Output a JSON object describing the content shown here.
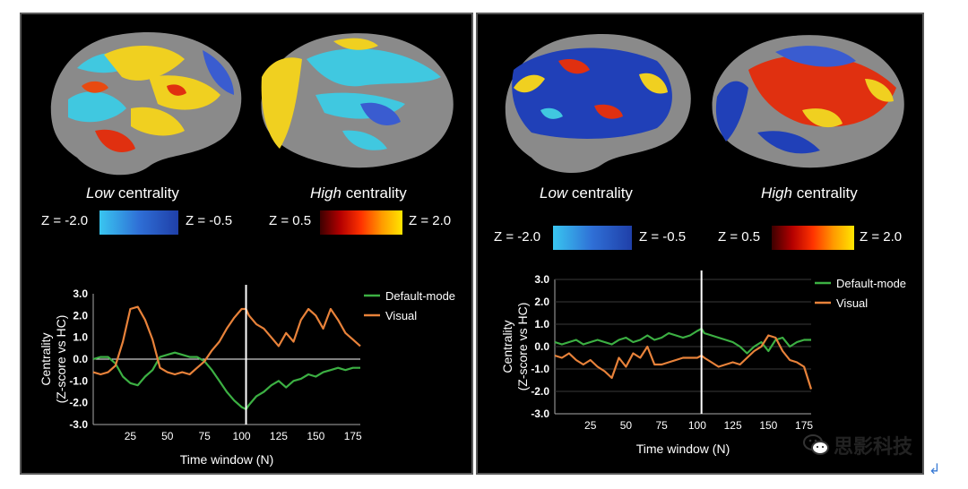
{
  "panels": [
    {
      "low_label_italic": "Low",
      "low_label_rest": " centrality",
      "high_label_italic": "High",
      "high_label_rest": " centrality",
      "z_low_min": "Z = -2.0",
      "z_low_max": "Z = -0.5",
      "z_high_min": "Z = 0.5",
      "z_high_max": "Z = 2.0"
    },
    {
      "low_label_italic": "Low",
      "low_label_rest": " centrality",
      "high_label_italic": "High",
      "high_label_rest": " centrality",
      "z_low_min": "Z = -2.0",
      "z_low_max": "Z = -0.5",
      "z_high_min": "Z = 0.5",
      "z_high_max": "Z = 2.0"
    }
  ],
  "colors": {
    "default_mode": "#3cb043",
    "visual": "#e8823a",
    "low_scale": [
      "#39c6f0",
      "#1f3fa8"
    ],
    "high_scale": [
      "#3d0000",
      "#ffe600"
    ]
  },
  "chart_data": [
    {
      "type": "line",
      "xlabel": "Time window (N)",
      "ylabel": "Centrality\n(Z-score vs HC)",
      "xlim": [
        0,
        180
      ],
      "ylim": [
        -3.0,
        3.0
      ],
      "xticks": [
        25,
        50,
        75,
        100,
        125,
        150,
        175
      ],
      "yticks": [
        "3.0",
        "2.0",
        "1.0",
        "0.0",
        "-1.0",
        "-2.0",
        "-3.0"
      ],
      "zero_line": true,
      "vertical_marker_x": 103,
      "legend_position": "top-right",
      "series": [
        {
          "name": "Default-mode",
          "x": [
            0,
            5,
            10,
            15,
            20,
            25,
            30,
            35,
            40,
            45,
            50,
            55,
            60,
            65,
            70,
            75,
            80,
            85,
            90,
            95,
            100,
            103,
            105,
            110,
            115,
            120,
            125,
            130,
            135,
            140,
            145,
            150,
            155,
            160,
            165,
            170,
            175,
            180
          ],
          "y": [
            0.0,
            0.1,
            0.1,
            -0.2,
            -0.8,
            -1.1,
            -1.2,
            -0.8,
            -0.5,
            0.1,
            0.2,
            0.3,
            0.2,
            0.1,
            0.1,
            -0.1,
            -0.5,
            -1.0,
            -1.5,
            -1.9,
            -2.2,
            -2.3,
            -2.1,
            -1.7,
            -1.5,
            -1.2,
            -1.0,
            -1.3,
            -1.0,
            -0.9,
            -0.7,
            -0.8,
            -0.6,
            -0.5,
            -0.4,
            -0.5,
            -0.4,
            -0.4
          ]
        },
        {
          "name": "Visual",
          "x": [
            0,
            5,
            10,
            15,
            20,
            25,
            30,
            35,
            40,
            45,
            50,
            55,
            60,
            65,
            70,
            75,
            80,
            85,
            90,
            95,
            100,
            103,
            105,
            110,
            115,
            120,
            125,
            130,
            135,
            140,
            145,
            150,
            155,
            160,
            165,
            170,
            175,
            180
          ],
          "y": [
            -0.6,
            -0.7,
            -0.6,
            -0.3,
            0.8,
            2.3,
            2.4,
            1.8,
            0.9,
            -0.4,
            -0.6,
            -0.7,
            -0.6,
            -0.7,
            -0.4,
            -0.1,
            0.4,
            0.8,
            1.4,
            1.9,
            2.3,
            2.3,
            2.0,
            1.6,
            1.4,
            1.0,
            0.6,
            1.2,
            0.8,
            1.8,
            2.3,
            2.0,
            1.4,
            2.3,
            1.8,
            1.2,
            0.9,
            0.6
          ]
        }
      ]
    },
    {
      "type": "line",
      "xlabel": "Time window (N)",
      "ylabel": "Centrality\n(Z-score vs HC)",
      "xlim": [
        0,
        180
      ],
      "ylim": [
        -3.0,
        3.0
      ],
      "xticks": [
        25,
        50,
        75,
        100,
        125,
        150,
        175
      ],
      "yticks": [
        "3.0",
        "2.0",
        "1.0",
        "0.0",
        "-1.0",
        "-2.0",
        "-3.0"
      ],
      "zero_line": false,
      "vertical_marker_x": 103,
      "legend_position": "top-right",
      "series": [
        {
          "name": "Default-mode",
          "x": [
            0,
            5,
            10,
            15,
            20,
            25,
            30,
            35,
            40,
            45,
            50,
            55,
            60,
            65,
            70,
            75,
            80,
            85,
            90,
            95,
            100,
            103,
            105,
            110,
            115,
            120,
            125,
            130,
            135,
            140,
            145,
            150,
            155,
            160,
            165,
            170,
            175,
            180
          ],
          "y": [
            0.2,
            0.1,
            0.2,
            0.3,
            0.1,
            0.2,
            0.3,
            0.2,
            0.1,
            0.3,
            0.4,
            0.2,
            0.3,
            0.5,
            0.3,
            0.4,
            0.6,
            0.5,
            0.4,
            0.5,
            0.7,
            0.8,
            0.6,
            0.5,
            0.4,
            0.3,
            0.2,
            0.0,
            -0.3,
            0.0,
            0.2,
            -0.2,
            0.3,
            0.4,
            0.0,
            0.2,
            0.3,
            0.3
          ]
        },
        {
          "name": "Visual",
          "x": [
            0,
            5,
            10,
            15,
            20,
            25,
            30,
            35,
            40,
            45,
            50,
            55,
            60,
            65,
            70,
            75,
            80,
            85,
            90,
            95,
            100,
            103,
            105,
            110,
            115,
            120,
            125,
            130,
            135,
            140,
            145,
            150,
            155,
            160,
            165,
            170,
            175,
            180
          ],
          "y": [
            -0.4,
            -0.5,
            -0.3,
            -0.6,
            -0.8,
            -0.6,
            -0.9,
            -1.1,
            -1.4,
            -0.5,
            -0.9,
            -0.3,
            -0.5,
            0.0,
            -0.8,
            -0.8,
            -0.7,
            -0.6,
            -0.5,
            -0.5,
            -0.5,
            -0.4,
            -0.5,
            -0.7,
            -0.9,
            -0.8,
            -0.7,
            -0.8,
            -0.5,
            -0.2,
            0.0,
            0.5,
            0.4,
            -0.2,
            -0.6,
            -0.7,
            -0.9,
            -1.9
          ]
        }
      ]
    }
  ],
  "watermark": {
    "text": "思影科技",
    "icon": "wechat-icon"
  },
  "return_symbol": "↲"
}
